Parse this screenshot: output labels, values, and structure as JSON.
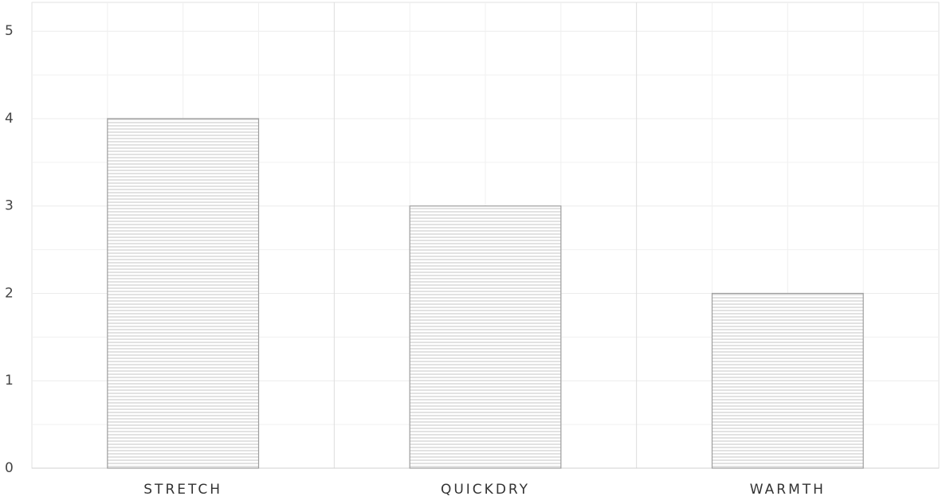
{
  "chart_data": {
    "type": "bar",
    "categories": [
      "STRETCH",
      "QUICKDRY",
      "WARMTH"
    ],
    "values": [
      4,
      3,
      2
    ],
    "color": "#9e9e9e",
    "ylim": [
      0,
      5.33
    ],
    "yticks": [
      0,
      1,
      2,
      3,
      4,
      5
    ],
    "grid": true
  }
}
